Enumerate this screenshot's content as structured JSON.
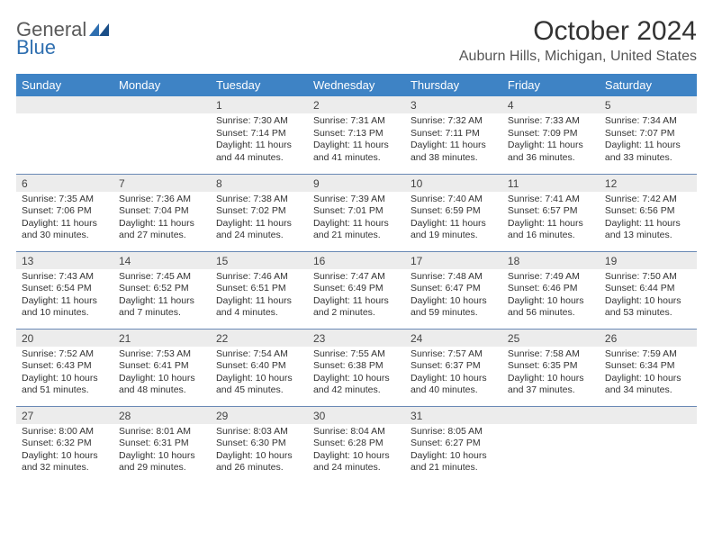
{
  "brand": {
    "general": "General",
    "blue": "Blue"
  },
  "title": "October 2024",
  "location": "Auburn Hills, Michigan, United States",
  "header_bg": "#3e83c5",
  "shade_bg": "#ececec",
  "rule_color": "#6a89b5",
  "day_headers": [
    "Sunday",
    "Monday",
    "Tuesday",
    "Wednesday",
    "Thursday",
    "Friday",
    "Saturday"
  ],
  "weeks": [
    [
      null,
      null,
      {
        "n": "1",
        "sr": "7:30 AM",
        "ss": "7:14 PM",
        "dl": "11 hours and 44 minutes."
      },
      {
        "n": "2",
        "sr": "7:31 AM",
        "ss": "7:13 PM",
        "dl": "11 hours and 41 minutes."
      },
      {
        "n": "3",
        "sr": "7:32 AM",
        "ss": "7:11 PM",
        "dl": "11 hours and 38 minutes."
      },
      {
        "n": "4",
        "sr": "7:33 AM",
        "ss": "7:09 PM",
        "dl": "11 hours and 36 minutes."
      },
      {
        "n": "5",
        "sr": "7:34 AM",
        "ss": "7:07 PM",
        "dl": "11 hours and 33 minutes."
      }
    ],
    [
      {
        "n": "6",
        "sr": "7:35 AM",
        "ss": "7:06 PM",
        "dl": "11 hours and 30 minutes."
      },
      {
        "n": "7",
        "sr": "7:36 AM",
        "ss": "7:04 PM",
        "dl": "11 hours and 27 minutes."
      },
      {
        "n": "8",
        "sr": "7:38 AM",
        "ss": "7:02 PM",
        "dl": "11 hours and 24 minutes."
      },
      {
        "n": "9",
        "sr": "7:39 AM",
        "ss": "7:01 PM",
        "dl": "11 hours and 21 minutes."
      },
      {
        "n": "10",
        "sr": "7:40 AM",
        "ss": "6:59 PM",
        "dl": "11 hours and 19 minutes."
      },
      {
        "n": "11",
        "sr": "7:41 AM",
        "ss": "6:57 PM",
        "dl": "11 hours and 16 minutes."
      },
      {
        "n": "12",
        "sr": "7:42 AM",
        "ss": "6:56 PM",
        "dl": "11 hours and 13 minutes."
      }
    ],
    [
      {
        "n": "13",
        "sr": "7:43 AM",
        "ss": "6:54 PM",
        "dl": "11 hours and 10 minutes."
      },
      {
        "n": "14",
        "sr": "7:45 AM",
        "ss": "6:52 PM",
        "dl": "11 hours and 7 minutes."
      },
      {
        "n": "15",
        "sr": "7:46 AM",
        "ss": "6:51 PM",
        "dl": "11 hours and 4 minutes."
      },
      {
        "n": "16",
        "sr": "7:47 AM",
        "ss": "6:49 PM",
        "dl": "11 hours and 2 minutes."
      },
      {
        "n": "17",
        "sr": "7:48 AM",
        "ss": "6:47 PM",
        "dl": "10 hours and 59 minutes."
      },
      {
        "n": "18",
        "sr": "7:49 AM",
        "ss": "6:46 PM",
        "dl": "10 hours and 56 minutes."
      },
      {
        "n": "19",
        "sr": "7:50 AM",
        "ss": "6:44 PM",
        "dl": "10 hours and 53 minutes."
      }
    ],
    [
      {
        "n": "20",
        "sr": "7:52 AM",
        "ss": "6:43 PM",
        "dl": "10 hours and 51 minutes."
      },
      {
        "n": "21",
        "sr": "7:53 AM",
        "ss": "6:41 PM",
        "dl": "10 hours and 48 minutes."
      },
      {
        "n": "22",
        "sr": "7:54 AM",
        "ss": "6:40 PM",
        "dl": "10 hours and 45 minutes."
      },
      {
        "n": "23",
        "sr": "7:55 AM",
        "ss": "6:38 PM",
        "dl": "10 hours and 42 minutes."
      },
      {
        "n": "24",
        "sr": "7:57 AM",
        "ss": "6:37 PM",
        "dl": "10 hours and 40 minutes."
      },
      {
        "n": "25",
        "sr": "7:58 AM",
        "ss": "6:35 PM",
        "dl": "10 hours and 37 minutes."
      },
      {
        "n": "26",
        "sr": "7:59 AM",
        "ss": "6:34 PM",
        "dl": "10 hours and 34 minutes."
      }
    ],
    [
      {
        "n": "27",
        "sr": "8:00 AM",
        "ss": "6:32 PM",
        "dl": "10 hours and 32 minutes."
      },
      {
        "n": "28",
        "sr": "8:01 AM",
        "ss": "6:31 PM",
        "dl": "10 hours and 29 minutes."
      },
      {
        "n": "29",
        "sr": "8:03 AM",
        "ss": "6:30 PM",
        "dl": "10 hours and 26 minutes."
      },
      {
        "n": "30",
        "sr": "8:04 AM",
        "ss": "6:28 PM",
        "dl": "10 hours and 24 minutes."
      },
      {
        "n": "31",
        "sr": "8:05 AM",
        "ss": "6:27 PM",
        "dl": "10 hours and 21 minutes."
      },
      null,
      null
    ]
  ],
  "labels": {
    "sunrise": "Sunrise:",
    "sunset": "Sunset:",
    "daylight": "Daylight:"
  }
}
